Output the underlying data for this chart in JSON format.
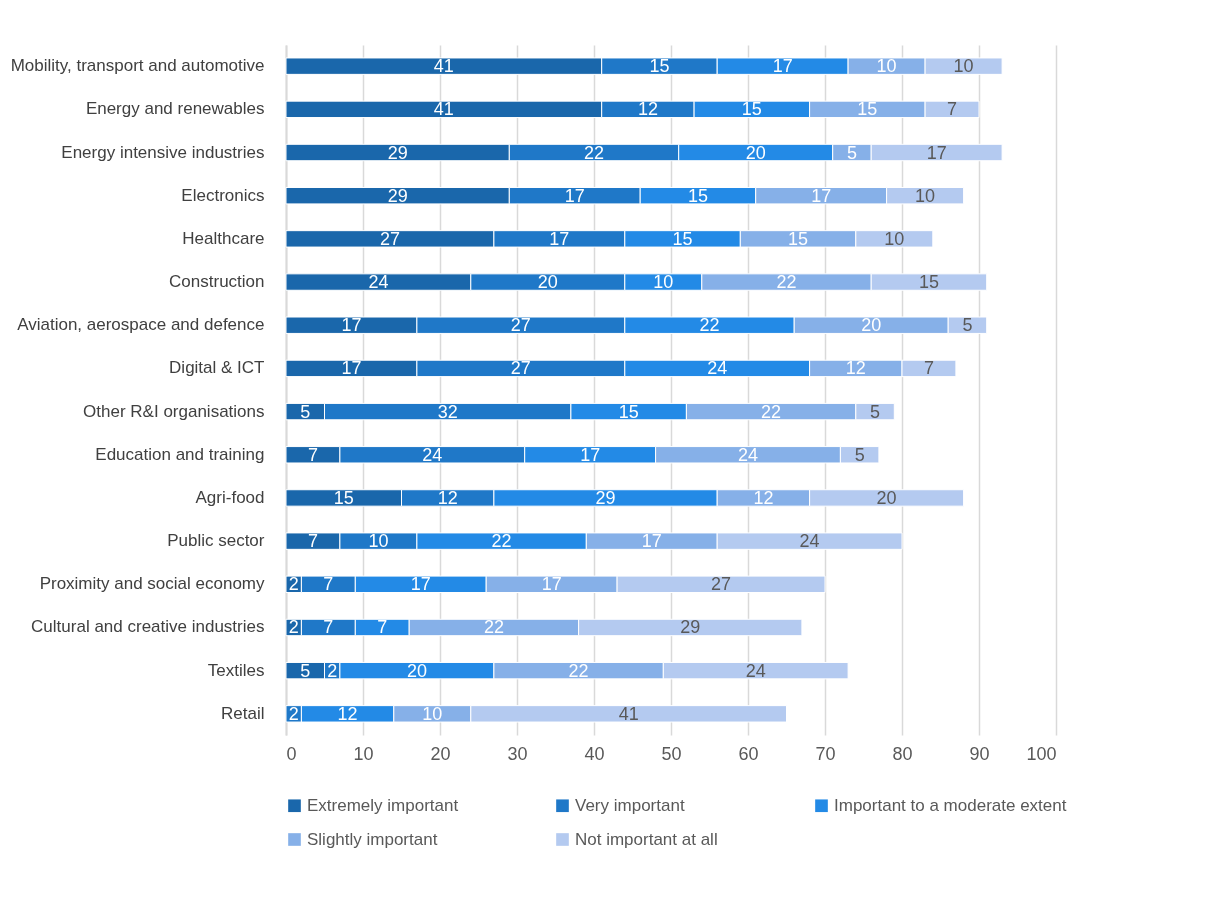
{
  "chart_data": {
    "type": "bar",
    "orientation": "horizontal",
    "stacked": true,
    "categories": [
      "Mobility, transport and automotive",
      "Energy and renewables",
      "Energy intensive industries",
      "Electronics",
      "Healthcare",
      "Construction",
      "Aviation, aerospace and defence",
      "Digital & ICT",
      "Other R&I organisations",
      "Education and training",
      "Agri-food",
      "Public sector",
      "Proximity and social economy",
      "Cultural and creative industries",
      "Textiles",
      "Retail"
    ],
    "series": [
      {
        "name": "Extremely important",
        "color": "#1a67ab",
        "values": [
          41,
          41,
          29,
          29,
          27,
          24,
          17,
          17,
          5,
          7,
          15,
          7,
          2,
          2,
          5,
          null
        ]
      },
      {
        "name": "Very important",
        "color": "#1f78c8",
        "values": [
          15,
          12,
          22,
          17,
          17,
          20,
          27,
          27,
          32,
          24,
          12,
          10,
          7,
          7,
          2,
          2
        ]
      },
      {
        "name": "Important to a moderate extent",
        "color": "#238ae6",
        "values": [
          17,
          15,
          20,
          15,
          15,
          10,
          22,
          24,
          15,
          17,
          29,
          22,
          17,
          7,
          20,
          12
        ]
      },
      {
        "name": "Slightly important",
        "color": "#86b0e8",
        "values": [
          10,
          15,
          5,
          17,
          15,
          22,
          20,
          12,
          22,
          24,
          12,
          17,
          17,
          22,
          22,
          10
        ]
      },
      {
        "name": "Not important at all",
        "color": "#b4caf0",
        "values": [
          10,
          7,
          17,
          10,
          10,
          15,
          5,
          7,
          5,
          5,
          20,
          24,
          27,
          29,
          24,
          41
        ]
      }
    ],
    "xlim": [
      0,
      100
    ],
    "xticks": [
      0,
      10,
      20,
      30,
      40,
      50,
      60,
      70,
      80,
      90,
      100
    ],
    "grid": "x",
    "legend": "bottom",
    "data_labels": true
  }
}
